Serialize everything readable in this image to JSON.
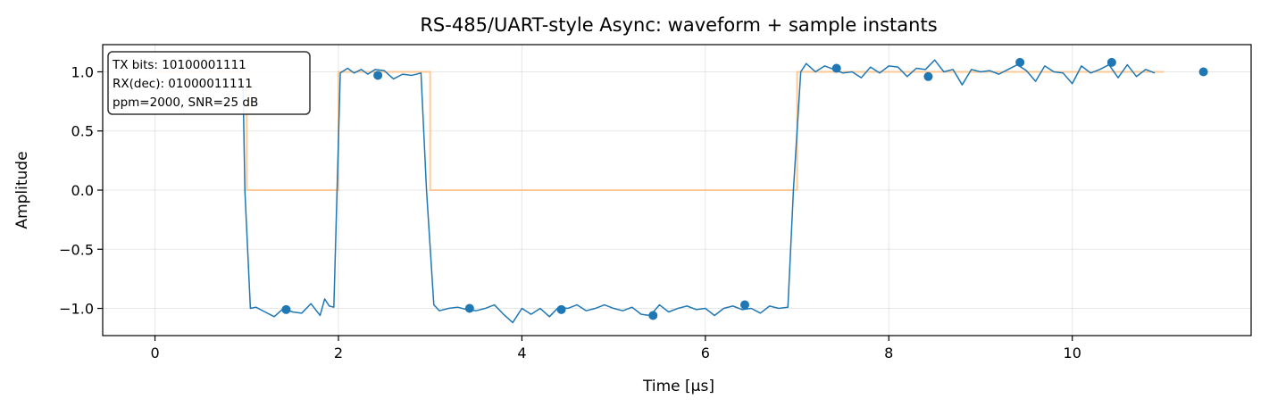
{
  "chart_data": {
    "type": "line",
    "title": "RS-485/UART-style Async: waveform + sample instants",
    "xlabel": "Time [µs]",
    "ylabel": "Amplitude",
    "xlim": [
      -0.57,
      11.95
    ],
    "ylim": [
      -1.23,
      1.23
    ],
    "xticks": [
      0,
      2,
      4,
      6,
      8,
      10
    ],
    "xtick_labels": [
      "0",
      "2",
      "4",
      "6",
      "8",
      "10"
    ],
    "yticks": [
      -1.0,
      -0.5,
      0.0,
      0.5,
      1.0
    ],
    "ytick_labels": [
      "−1.0",
      "−0.5",
      "0.0",
      "0.5",
      "1.0"
    ],
    "grid": true,
    "colors": {
      "waveform": "#1f77b4",
      "tx_bits": "#ffbb78",
      "samples": "#1f77b4"
    },
    "annotation": {
      "lines": [
        "TX bits: 10100001111",
        "RX(dec): 01000011111",
        "ppm=2000, SNR=25 dB"
      ],
      "placement": "top-left"
    },
    "series": [
      {
        "kind": "step",
        "x": [
          0,
          1,
          1,
          2,
          2,
          3,
          3,
          7,
          7,
          11
        ],
        "y": [
          1,
          1,
          0,
          0,
          1,
          1,
          0,
          0,
          1,
          1
        ]
      },
      {
        "kind": "line",
        "x": [
          0.96,
          0.98,
          1.04,
          1.1,
          1.2,
          1.3,
          1.4,
          1.5,
          1.6,
          1.7,
          1.8,
          1.85,
          1.9,
          1.95,
          2.02,
          2.1,
          2.17,
          2.25,
          2.32,
          2.4,
          2.5,
          2.6,
          2.7,
          2.8,
          2.9,
          2.96,
          3.04,
          3.1,
          3.2,
          3.3,
          3.4,
          3.5,
          3.6,
          3.7,
          3.8,
          3.9,
          4.0,
          4.1,
          4.2,
          4.3,
          4.4,
          4.5,
          4.6,
          4.7,
          4.8,
          4.9,
          5.0,
          5.1,
          5.2,
          5.3,
          5.4,
          5.5,
          5.6,
          5.7,
          5.8,
          5.9,
          6.0,
          6.1,
          6.2,
          6.3,
          6.4,
          6.5,
          6.6,
          6.7,
          6.8,
          6.9,
          6.96,
          7.04,
          7.1,
          7.2,
          7.3,
          7.4,
          7.5,
          7.6,
          7.7,
          7.8,
          7.9,
          8.0,
          8.1,
          8.2,
          8.3,
          8.4,
          8.5,
          8.6,
          8.7,
          8.8,
          8.9,
          9.0,
          9.1,
          9.2,
          9.3,
          9.4,
          9.5,
          9.6,
          9.7,
          9.8,
          9.9,
          10.0,
          10.1,
          10.2,
          10.3,
          10.4,
          10.5,
          10.6,
          10.7,
          10.8,
          10.9
        ],
        "y": [
          0.9,
          0.0,
          -1.0,
          -0.99,
          -1.03,
          -1.07,
          -1.0,
          -1.03,
          -1.04,
          -0.96,
          -1.06,
          -0.92,
          -0.98,
          -0.99,
          0.99,
          1.03,
          0.99,
          1.02,
          0.98,
          1.02,
          1.01,
          0.94,
          0.98,
          0.97,
          0.99,
          0.0,
          -0.97,
          -1.02,
          -1.0,
          -0.99,
          -1.01,
          -1.02,
          -1.0,
          -0.97,
          -1.05,
          -1.12,
          -1.0,
          -1.05,
          -1.0,
          -1.07,
          -0.99,
          -1.0,
          -0.97,
          -1.02,
          -1.0,
          -0.97,
          -1.0,
          -1.02,
          -0.99,
          -1.05,
          -1.06,
          -0.97,
          -1.03,
          -1.0,
          -0.98,
          -1.01,
          -1.0,
          -1.06,
          -1.0,
          -0.98,
          -1.01,
          -1.0,
          -1.04,
          -0.98,
          -1.0,
          -0.99,
          -0.0,
          1.0,
          1.07,
          1.0,
          1.05,
          1.02,
          0.99,
          1.0,
          0.95,
          1.04,
          0.99,
          1.05,
          1.04,
          0.96,
          1.03,
          1.02,
          1.1,
          1.0,
          1.02,
          0.89,
          1.02,
          1.0,
          1.01,
          0.98,
          1.02,
          1.06,
          1.01,
          0.92,
          1.05,
          1.0,
          0.99,
          0.9,
          1.05,
          0.99,
          1.02,
          1.06,
          0.95,
          1.06,
          0.96,
          1.02,
          0.99
        ]
      },
      {
        "kind": "scatter",
        "x": [
          1.43,
          2.43,
          3.43,
          4.43,
          5.43,
          6.43,
          7.43,
          8.43,
          9.43,
          10.43,
          11.43
        ],
        "y": [
          -1.01,
          0.97,
          -1.0,
          -1.01,
          -1.06,
          -0.97,
          1.03,
          0.96,
          1.08,
          1.08,
          1.0
        ]
      }
    ]
  }
}
